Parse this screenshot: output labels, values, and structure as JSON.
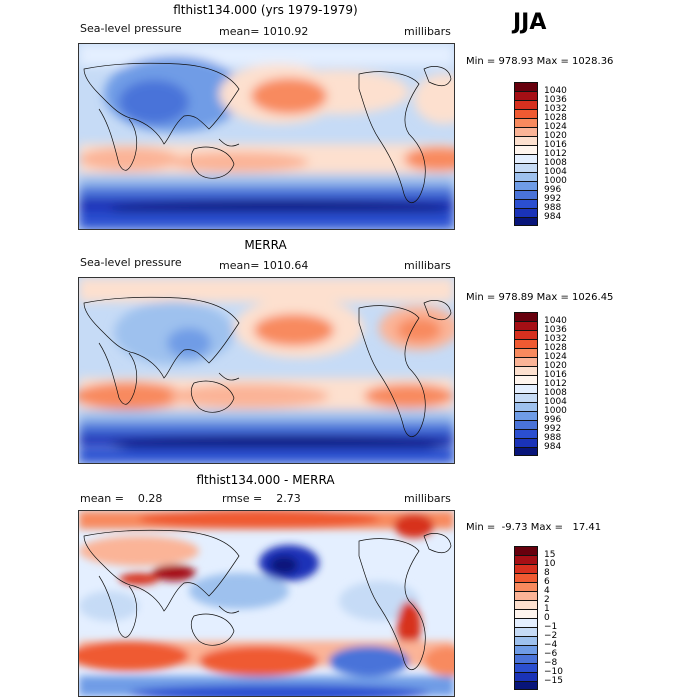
{
  "season": "JJA",
  "panels": [
    {
      "title": "flthist134.000 (yrs 1979-1979)",
      "left_text": "Sea-level pressure",
      "center_text": "mean= 1010.92",
      "right_text": "millibars",
      "minmax": "Min = 978.93 Max = 1028.36",
      "colorbar": {
        "colors": [
          "#67000d",
          "#a50f15",
          "#d7301f",
          "#ef5a32",
          "#f88a5e",
          "#fbb497",
          "#fde0cf",
          "#fff5ee",
          "#e4efff",
          "#c6dbf6",
          "#9ec1ee",
          "#6f9ce6",
          "#4a73d9",
          "#2b4fd0",
          "#1a33b8",
          "#08157a"
        ],
        "labels": [
          "1040",
          "1036",
          "1032",
          "1028",
          "1024",
          "1020",
          "1016",
          "1012",
          "1008",
          "1004",
          "1000",
          "996",
          "992",
          "988",
          "984"
        ]
      }
    },
    {
      "title": "MERRA",
      "left_text": "Sea-level pressure",
      "center_text": "mean= 1010.64",
      "right_text": "millibars",
      "minmax": "Min = 978.89 Max = 1026.45",
      "colorbar": {
        "colors": [
          "#67000d",
          "#a50f15",
          "#d7301f",
          "#ef5a32",
          "#f88a5e",
          "#fbb497",
          "#fde0cf",
          "#fff5ee",
          "#e4efff",
          "#c6dbf6",
          "#9ec1ee",
          "#6f9ce6",
          "#4a73d9",
          "#2b4fd0",
          "#1a33b8",
          "#08157a"
        ],
        "labels": [
          "1040",
          "1036",
          "1032",
          "1028",
          "1024",
          "1020",
          "1016",
          "1012",
          "1008",
          "1004",
          "1000",
          "996",
          "992",
          "988",
          "984"
        ]
      }
    },
    {
      "title": "flthist134.000 - MERRA",
      "left_text": "mean =    0.28",
      "center_text": "rmse =    2.73",
      "right_text": "millibars",
      "minmax": "Min =  -9.73 Max =   17.41",
      "colorbar": {
        "colors": [
          "#67000d",
          "#a50f15",
          "#d7301f",
          "#ef5a32",
          "#f88a5e",
          "#fbb497",
          "#fde0cf",
          "#fff5ee",
          "#e4efff",
          "#c6dbf6",
          "#9ec1ee",
          "#6f9ce6",
          "#4a73d9",
          "#2b4fd0",
          "#1a33b8",
          "#08157a"
        ],
        "labels": [
          "15",
          "10",
          "8",
          "6",
          "4",
          "2",
          "1",
          "0",
          "−1",
          "−2",
          "−4",
          "−6",
          "−8",
          "−10",
          "−15"
        ]
      }
    }
  ]
}
